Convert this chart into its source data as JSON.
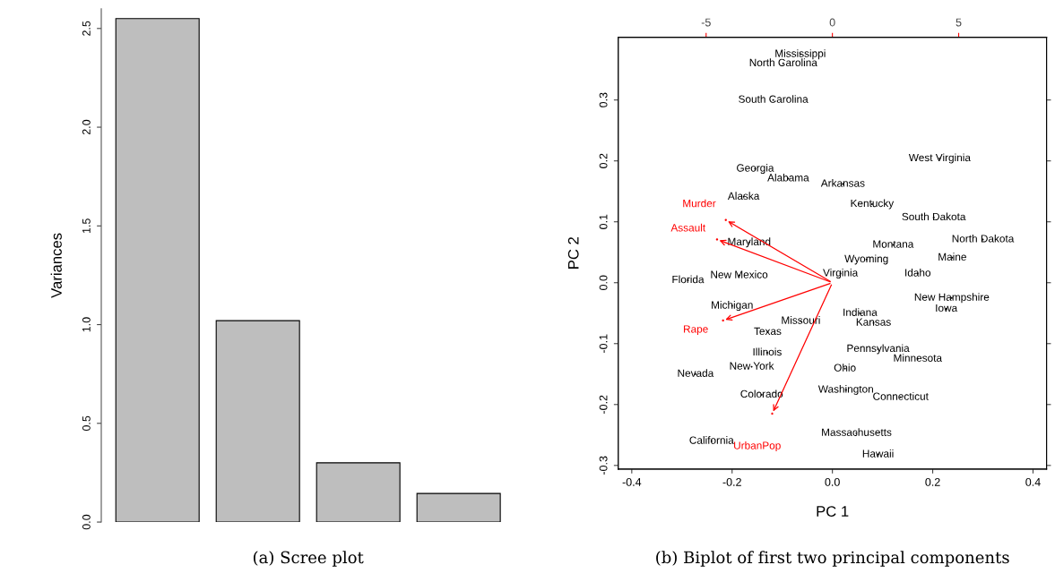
{
  "chart_data": [
    {
      "type": "bar",
      "ylabel": "Variances",
      "categories": [
        null,
        null,
        null,
        null
      ],
      "values": [
        2.55,
        1.02,
        0.3,
        0.145
      ],
      "color": "#bebebe",
      "ylim": [
        0,
        2.6
      ],
      "yticks": [
        {
          "value": 0,
          "label": "0.0"
        },
        0.5,
        {
          "value": 1,
          "label": "1.0"
        },
        1.5,
        {
          "value": 2,
          "label": "2.0"
        },
        2.5
      ],
      "grid": false,
      "annotations": [
        "(a) Scree plot"
      ]
    },
    {
      "type": "scatter",
      "xlabel": "PC 1",
      "ylabel": "PC 2",
      "marker": "none",
      "grid": false,
      "xlim": [
        -0.427,
        0.427
      ],
      "xticks": [
        {
          "value": -0.4,
          "label": "-0.4"
        },
        {
          "value": -0.2,
          "label": "-0.2"
        },
        {
          "value": 0.0,
          "label": "0.0"
        },
        {
          "value": 0.2,
          "label": "0.2"
        },
        {
          "value": 0.4,
          "label": "0.4"
        }
      ],
      "ylim": [
        -0.306,
        0.403
      ],
      "yticks": [
        {
          "value": -0.3,
          "label": "-0.3"
        },
        {
          "value": -0.2,
          "label": "-0.2"
        },
        {
          "value": -0.1,
          "label": "-0.1"
        },
        {
          "value": 0.0,
          "label": "0.0"
        },
        {
          "value": 0.1,
          "label": "0.1"
        },
        {
          "value": 0.2,
          "label": "0.2"
        },
        {
          "value": 0.3,
          "label": "0.3"
        }
      ],
      "x2lim": [
        -8.48,
        8.48
      ],
      "x2ticks": [
        {
          "value": -5,
          "label": "-5"
        },
        0,
        5
      ],
      "series": [
        {
          "type": "scatter",
          "color": "#000000",
          "x": [
            -0.064,
            -0.098,
            -0.118,
            0.214,
            -0.154,
            -0.088,
            0.021,
            -0.177,
            0.079,
            0.202,
            -0.166,
            0.121,
            0.3,
            0.068,
            0.239,
            -0.186,
            0.016,
            0.17,
            -0.288,
            0.238,
            0.227,
            -0.2,
            0.055,
            -0.063,
            0.082,
            -0.129,
            0.091,
            -0.13,
            0.17,
            -0.161,
            0.025,
            -0.273,
            0.027,
            -0.141,
            0.136,
            0.048,
            -0.241,
            0.091
          ],
          "values": [
            0.375,
            0.36,
            0.3,
            0.204,
            0.187,
            0.171,
            0.162,
            0.141,
            0.129,
            0.107,
            0.066,
            0.062,
            0.071,
            0.038,
            0.041,
            0.012,
            0.015,
            0.015,
            0.004,
            -0.025,
            -0.043,
            -0.038,
            -0.05,
            -0.063,
            -0.066,
            -0.081,
            -0.109,
            -0.115,
            -0.125,
            -0.138,
            -0.141,
            -0.15,
            -0.176,
            -0.184,
            -0.188,
            -0.247,
            -0.26,
            -0.282
          ],
          "value_labels": [
            "Mississippi",
            "North Carolina",
            "South Carolina",
            "West Virginia",
            "Georgia",
            "Alabama",
            "Arkansas",
            "Alaska",
            "Kentucky",
            "South Dakota",
            "Maryland",
            "Montana",
            "North Dakota",
            "Wyoming",
            "Maine",
            "New Mexico",
            "Virginia",
            "Idaho",
            "Florida",
            "New Hampshire",
            "Iowa",
            "Michigan",
            "Indiana",
            "Missouri",
            "Kansas",
            "Texas",
            "Pennsylvania",
            "Illinois",
            "Minnesota",
            "New York",
            "Ohio",
            "Nevada",
            "Washington",
            "Colorado",
            "Connecticut",
            "Massachusetts",
            "California",
            "Hawaii"
          ]
        },
        {
          "type": "scatter",
          "line_style": "solid",
          "color": "#ff0000",
          "x": [
            -0.2125,
            -0.23,
            -0.218,
            -0.12
          ],
          "values": [
            0.103,
            0.071,
            -0.062,
            -0.215
          ],
          "value_labels": [
            "Murder",
            "Assault",
            "Rape",
            "UrbanPop"
          ]
        }
      ],
      "annotations": [
        "(b) Biplot of first two principal components"
      ]
    }
  ]
}
